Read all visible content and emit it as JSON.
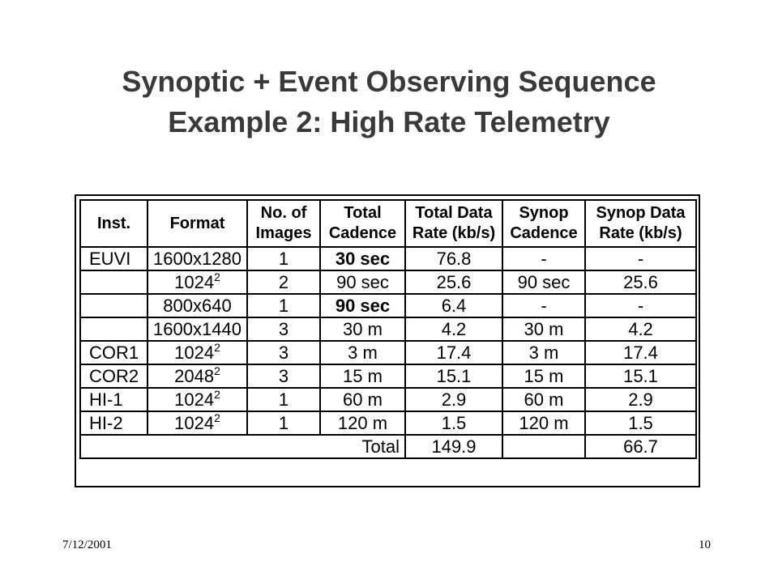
{
  "title": {
    "line1": "Synoptic + Event Observing Sequence",
    "line2": "Example 2: High Rate Telemetry"
  },
  "table": {
    "headers": [
      [
        "Inst.",
        ""
      ],
      [
        "Format",
        ""
      ],
      [
        "No. of",
        "Images"
      ],
      [
        "Total",
        "Cadence"
      ],
      [
        "Total Data",
        "Rate (kb/s)"
      ],
      [
        "Synop",
        "Cadence"
      ],
      [
        "Synop Data",
        "Rate (kb/s)"
      ]
    ],
    "rows": [
      {
        "inst": "EUVI",
        "format": "1600x1280",
        "format_sup": "",
        "images": "1",
        "cadence": "30 sec",
        "cadence_bold": true,
        "rate": "76.8",
        "synop_cadence": "-",
        "synop_rate": "-"
      },
      {
        "inst": "",
        "format": "1024",
        "format_sup": "2",
        "images": "2",
        "cadence": "90 sec",
        "cadence_bold": false,
        "rate": "25.6",
        "synop_cadence": "90 sec",
        "synop_rate": "25.6"
      },
      {
        "inst": "",
        "format": "800x640",
        "format_sup": "",
        "images": "1",
        "cadence": "90 sec",
        "cadence_bold": true,
        "rate": "6.4",
        "synop_cadence": "-",
        "synop_rate": "-"
      },
      {
        "inst": "",
        "format": "1600x1440",
        "format_sup": "",
        "images": "3",
        "cadence": "30 m",
        "cadence_bold": false,
        "rate": "4.2",
        "synop_cadence": "30 m",
        "synop_rate": "4.2"
      },
      {
        "inst": "COR1",
        "format": "1024",
        "format_sup": "2",
        "images": "3",
        "cadence": "3 m",
        "cadence_bold": false,
        "rate": "17.4",
        "synop_cadence": "3 m",
        "synop_rate": "17.4"
      },
      {
        "inst": "COR2",
        "format": "2048",
        "format_sup": "2",
        "images": "3",
        "cadence": "15 m",
        "cadence_bold": false,
        "rate": "15.1",
        "synop_cadence": "15 m",
        "synop_rate": "15.1"
      },
      {
        "inst": "HI-1",
        "format": "1024",
        "format_sup": "2",
        "images": "1",
        "cadence": "60 m",
        "cadence_bold": false,
        "rate": "2.9",
        "synop_cadence": "60 m",
        "synop_rate": "2.9"
      },
      {
        "inst": "HI-2",
        "format": "1024",
        "format_sup": "2",
        "images": "1",
        "cadence": "120 m",
        "cadence_bold": false,
        "rate": "1.5",
        "synop_cadence": "120 m",
        "synop_rate": "1.5"
      }
    ],
    "total": {
      "label": "Total",
      "rate": "149.9",
      "synop_cadence": "",
      "synop_rate": "66.7"
    }
  },
  "footer": {
    "date": "7/12/2001",
    "page": "10"
  }
}
